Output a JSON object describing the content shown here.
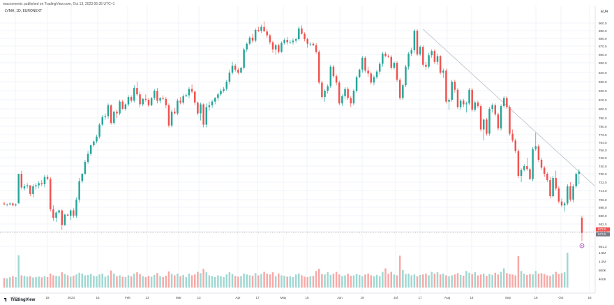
{
  "header": {
    "published_by": "macromemic published on TradingView.com, Oct 13, 2023 06:35 UTC+1",
    "symbol": "LVMH, 1D, EURONEXT",
    "currency": "EUR"
  },
  "footer": {
    "brand": "TradingView"
  },
  "colors": {
    "up": "#26a69a",
    "down": "#ef5350",
    "up_volume": "#9fd8d2",
    "down_volume": "#f7a9a7",
    "price_badge": "#ef5350",
    "trendline": "#b2b5be",
    "marker": "#9c27b0"
  },
  "chart_data": {
    "type": "candlestick",
    "title": "",
    "xlabel": "",
    "ylabel": "",
    "price_axis_ticks": [
      "900.0",
      "890.0",
      "880.0",
      "870.0",
      "860.0",
      "850.0",
      "840.0",
      "830.0",
      "820.0",
      "810.0",
      "800.0",
      "790.0",
      "780.0",
      "772.0",
      "764.0",
      "756.0",
      "748.0",
      "740.0",
      "730.0",
      "722.0",
      "714.0",
      "706.0",
      "698.0",
      "690.0",
      "682.0",
      "674.0",
      "661.3"
    ],
    "price_axis_tick_values": [
      900,
      890,
      880,
      870,
      860,
      850,
      840,
      830,
      820,
      810,
      800,
      790,
      780,
      772,
      764,
      756,
      748,
      740,
      730,
      722,
      714,
      706,
      698,
      690,
      682,
      674,
      661.3
    ],
    "volume_axis_ticks": [
      "1.6M",
      "1.2M",
      "800K",
      "400K"
    ],
    "volume_axis_tick_values": [
      1600000,
      1200000,
      800000,
      400000
    ],
    "time_axis_labels": [
      "Dec",
      "19",
      "2023",
      "16",
      "Feb",
      "13",
      "Mar",
      "13",
      "Apr",
      "17",
      "May",
      "15",
      "Jun",
      "19",
      "Jul",
      "17",
      "Aug",
      "14",
      "Sep",
      "18",
      "Oct",
      "16"
    ],
    "current_price_label": "673.0",
    "current_price_value": 673.0,
    "secondary_price_label": "673.5",
    "price_line_value": 673.5,
    "pivot_marker_label": "P",
    "volume_max": 1600000,
    "candles_ohlc": [
      [
        702,
        704,
        700,
        701
      ],
      [
        701,
        702,
        699,
        701
      ],
      [
        701,
        703,
        700,
        702
      ],
      [
        702,
        703,
        699,
        700
      ],
      [
        700,
        702,
        699,
        701
      ],
      [
        702,
        730,
        702,
        730
      ],
      [
        730,
        734,
        715,
        717
      ],
      [
        716,
        720,
        714,
        718
      ],
      [
        718,
        721,
        716,
        719
      ],
      [
        719,
        719,
        709,
        711
      ],
      [
        711,
        720,
        708,
        718
      ],
      [
        718,
        721,
        715,
        719
      ],
      [
        719,
        723,
        716,
        721
      ],
      [
        721,
        724,
        718,
        720
      ],
      [
        720,
        729,
        717,
        727
      ],
      [
        727,
        729,
        724,
        725
      ],
      [
        725,
        727,
        694,
        696
      ],
      [
        696,
        700,
        685,
        688
      ],
      [
        688,
        694,
        684,
        693
      ],
      [
        693,
        696,
        691,
        695
      ],
      [
        695,
        696,
        676,
        681
      ],
      [
        681,
        692,
        680,
        691
      ],
      [
        691,
        692,
        690,
        690
      ],
      [
        690,
        696,
        686,
        695
      ],
      [
        695,
        697,
        688,
        690
      ],
      [
        690,
        708,
        688,
        706
      ],
      [
        706,
        726,
        703,
        723
      ],
      [
        723,
        731,
        721,
        730
      ],
      [
        730,
        746,
        729,
        744
      ],
      [
        744,
        755,
        742,
        752
      ],
      [
        752,
        762,
        750,
        761
      ],
      [
        761,
        766,
        759,
        765
      ],
      [
        765,
        772,
        763,
        770
      ],
      [
        770,
        784,
        768,
        782
      ],
      [
        782,
        793,
        780,
        791
      ],
      [
        791,
        795,
        788,
        792
      ],
      [
        792,
        806,
        789,
        804
      ],
      [
        804,
        805,
        782,
        784
      ],
      [
        784,
        798,
        782,
        797
      ],
      [
        797,
        799,
        790,
        795
      ],
      [
        795,
        810,
        793,
        808
      ],
      [
        808,
        810,
        799,
        800
      ],
      [
        800,
        806,
        798,
        805
      ],
      [
        805,
        815,
        803,
        813
      ],
      [
        813,
        815,
        807,
        809
      ],
      [
        809,
        826,
        807,
        823
      ],
      [
        823,
        830,
        814,
        816
      ],
      [
        816,
        819,
        802,
        805
      ],
      [
        805,
        812,
        803,
        811
      ],
      [
        811,
        816,
        808,
        810
      ],
      [
        810,
        812,
        802,
        804
      ],
      [
        804,
        813,
        803,
        812
      ],
      [
        812,
        822,
        810,
        820
      ],
      [
        820,
        823,
        806,
        809
      ],
      [
        809,
        813,
        806,
        812
      ],
      [
        812,
        815,
        810,
        811
      ],
      [
        811,
        813,
        801,
        804
      ],
      [
        804,
        806,
        779,
        781
      ],
      [
        781,
        799,
        779,
        797
      ],
      [
        797,
        801,
        794,
        795
      ],
      [
        795,
        811,
        793,
        809
      ],
      [
        809,
        813,
        805,
        807
      ],
      [
        807,
        816,
        805,
        814
      ],
      [
        814,
        817,
        813,
        815
      ],
      [
        815,
        824,
        812,
        822
      ],
      [
        822,
        827,
        817,
        819
      ],
      [
        819,
        820,
        804,
        807
      ],
      [
        807,
        808,
        793,
        795
      ],
      [
        795,
        807,
        787,
        805
      ],
      [
        805,
        806,
        779,
        782
      ],
      [
        782,
        806,
        779,
        802
      ],
      [
        802,
        808,
        798,
        804
      ],
      [
        804,
        810,
        801,
        808
      ],
      [
        808,
        813,
        805,
        812
      ],
      [
        812,
        818,
        809,
        816
      ],
      [
        816,
        822,
        814,
        820
      ],
      [
        820,
        824,
        818,
        822
      ],
      [
        822,
        832,
        820,
        830
      ],
      [
        830,
        843,
        827,
        840
      ],
      [
        840,
        851,
        838,
        847
      ],
      [
        847,
        849,
        841,
        843
      ],
      [
        843,
        845,
        838,
        840
      ],
      [
        840,
        846,
        839,
        845
      ],
      [
        845,
        868,
        843,
        866
      ],
      [
        866,
        875,
        863,
        873
      ],
      [
        873,
        883,
        871,
        881
      ],
      [
        881,
        886,
        874,
        877
      ],
      [
        877,
        893,
        875,
        891
      ],
      [
        891,
        895,
        888,
        890
      ],
      [
        890,
        898,
        887,
        895
      ],
      [
        895,
        902,
        890,
        889
      ],
      [
        889,
        892,
        881,
        884
      ],
      [
        884,
        886,
        872,
        875
      ],
      [
        875,
        877,
        862,
        866
      ],
      [
        866,
        873,
        860,
        871
      ],
      [
        871,
        873,
        861,
        863
      ],
      [
        863,
        876,
        862,
        874
      ],
      [
        874,
        880,
        872,
        878
      ],
      [
        878,
        882,
        872,
        875
      ],
      [
        875,
        878,
        873,
        875
      ],
      [
        875,
        880,
        872,
        877
      ],
      [
        877,
        881,
        874,
        879
      ],
      [
        879,
        896,
        877,
        893
      ],
      [
        893,
        897,
        885,
        886
      ],
      [
        886,
        888,
        876,
        879
      ],
      [
        879,
        881,
        868,
        873
      ],
      [
        873,
        875,
        870,
        873
      ],
      [
        873,
        875,
        870,
        871
      ],
      [
        871,
        874,
        861,
        863
      ],
      [
        863,
        865,
        827,
        829
      ],
      [
        829,
        831,
        811,
        813
      ],
      [
        813,
        822,
        808,
        820
      ],
      [
        820,
        827,
        817,
        825
      ],
      [
        825,
        848,
        823,
        846
      ],
      [
        846,
        848,
        834,
        836
      ],
      [
        836,
        838,
        826,
        829
      ],
      [
        829,
        831,
        804,
        806
      ],
      [
        806,
        816,
        803,
        814
      ],
      [
        814,
        824,
        811,
        822
      ],
      [
        822,
        824,
        810,
        812
      ],
      [
        812,
        814,
        802,
        806
      ],
      [
        806,
        822,
        804,
        820
      ],
      [
        820,
        837,
        818,
        835
      ],
      [
        835,
        844,
        834,
        843
      ],
      [
        843,
        858,
        840,
        856
      ],
      [
        856,
        858,
        840,
        842
      ],
      [
        842,
        846,
        835,
        839
      ],
      [
        839,
        841,
        827,
        829
      ],
      [
        829,
        837,
        826,
        835
      ],
      [
        835,
        843,
        833,
        841
      ],
      [
        841,
        851,
        838,
        849
      ],
      [
        849,
        863,
        846,
        861
      ],
      [
        861,
        863,
        857,
        858
      ],
      [
        858,
        860,
        856,
        857
      ],
      [
        857,
        859,
        843,
        845
      ],
      [
        845,
        852,
        843,
        850
      ],
      [
        850,
        852,
        830,
        832
      ],
      [
        832,
        834,
        810,
        812
      ],
      [
        812,
        828,
        810,
        826
      ],
      [
        826,
        848,
        824,
        846
      ],
      [
        846,
        863,
        843,
        861
      ],
      [
        861,
        868,
        858,
        865
      ],
      [
        865,
        892,
        862,
        890
      ],
      [
        890,
        892,
        858,
        860
      ],
      [
        860,
        871,
        858,
        869
      ],
      [
        869,
        871,
        846,
        848
      ],
      [
        848,
        851,
        843,
        846
      ],
      [
        846,
        862,
        844,
        859
      ],
      [
        859,
        866,
        856,
        864
      ],
      [
        864,
        866,
        849,
        851
      ],
      [
        851,
        861,
        848,
        858
      ],
      [
        858,
        859,
        838,
        840
      ],
      [
        840,
        844,
        834,
        842
      ],
      [
        842,
        844,
        806,
        808
      ],
      [
        808,
        812,
        799,
        810
      ],
      [
        810,
        832,
        808,
        830
      ],
      [
        830,
        832,
        818,
        821
      ],
      [
        821,
        823,
        800,
        802
      ],
      [
        802,
        811,
        799,
        809
      ],
      [
        809,
        811,
        802,
        805
      ],
      [
        805,
        808,
        796,
        806
      ],
      [
        806,
        823,
        804,
        821
      ],
      [
        821,
        823,
        797,
        799
      ],
      [
        799,
        809,
        797,
        807
      ],
      [
        807,
        809,
        801,
        803
      ],
      [
        803,
        805,
        775,
        777
      ],
      [
        777,
        789,
        766,
        788
      ],
      [
        788,
        790,
        771,
        773
      ],
      [
        773,
        802,
        771,
        800
      ],
      [
        800,
        806,
        796,
        804
      ],
      [
        804,
        806,
        792,
        794
      ],
      [
        794,
        796,
        776,
        778
      ],
      [
        778,
        805,
        776,
        803
      ],
      [
        803,
        814,
        801,
        812
      ],
      [
        812,
        814,
        800,
        802
      ],
      [
        802,
        804,
        771,
        773
      ],
      [
        773,
        777,
        764,
        766
      ],
      [
        766,
        768,
        753,
        755
      ],
      [
        755,
        757,
        726,
        728
      ],
      [
        728,
        737,
        722,
        735
      ],
      [
        735,
        742,
        733,
        740
      ],
      [
        740,
        748,
        734,
        736
      ],
      [
        736,
        738,
        724,
        725
      ],
      [
        725,
        759,
        723,
        757
      ],
      [
        757,
        774,
        755,
        760
      ],
      [
        760,
        762,
        744,
        746
      ],
      [
        746,
        748,
        735,
        738
      ],
      [
        738,
        740,
        727,
        730
      ],
      [
        730,
        732,
        722,
        724
      ],
      [
        724,
        727,
        707,
        709
      ],
      [
        709,
        728,
        708,
        726
      ],
      [
        726,
        734,
        714,
        716
      ],
      [
        716,
        718,
        702,
        704
      ],
      [
        704,
        707,
        698,
        700
      ],
      [
        700,
        704,
        694,
        702
      ],
      [
        702,
        720,
        700,
        718
      ],
      [
        718,
        722,
        704,
        706
      ],
      [
        706,
        720,
        703,
        718
      ],
      [
        718,
        732,
        716,
        730
      ],
      [
        730,
        736,
        720,
        733
      ],
      [
        688,
        690,
        666,
        673
      ]
    ],
    "volume_values": [
      440,
      420,
      470,
      520,
      480,
      1480,
      560,
      540,
      500,
      520,
      460,
      480,
      500,
      470,
      520,
      480,
      640,
      560,
      540,
      520,
      700,
      620,
      560,
      500,
      540,
      600,
      680,
      640,
      560,
      580,
      620,
      540,
      520,
      600,
      640,
      500,
      560,
      780,
      640,
      520,
      560,
      500,
      480,
      560,
      520,
      640,
      700,
      620,
      520,
      480,
      540,
      500,
      580,
      660,
      520,
      480,
      540,
      740,
      620,
      560,
      640,
      520,
      580,
      480,
      640,
      560,
      600,
      720,
      660,
      860,
      700,
      560,
      520,
      480,
      560,
      520,
      480,
      600,
      700,
      620,
      540,
      500,
      520,
      640,
      600,
      560,
      540,
      660,
      560,
      620,
      720,
      640,
      600,
      700,
      520,
      640,
      560,
      540,
      500,
      520,
      480,
      600,
      640,
      560,
      500,
      480,
      520,
      540,
      760,
      860,
      620,
      600,
      700,
      580,
      640,
      720,
      600,
      520,
      560,
      640,
      540,
      560,
      620,
      580,
      520,
      600,
      640,
      560,
      520,
      580,
      520,
      720,
      880,
      640,
      720,
      600,
      560,
      1460,
      800,
      620,
      640,
      560,
      600,
      520,
      580,
      600,
      640,
      560,
      720,
      640,
      700,
      600,
      640,
      560,
      520,
      560,
      600,
      660,
      580,
      540,
      760,
      680,
      620,
      700,
      560,
      600,
      640,
      540,
      620,
      580,
      680,
      600,
      720,
      880,
      660,
      620,
      600,
      560,
      1440,
      760,
      640,
      580,
      620,
      600,
      760,
      640,
      660,
      620,
      560,
      540,
      600,
      720,
      620,
      660,
      700,
      1600
    ]
  }
}
